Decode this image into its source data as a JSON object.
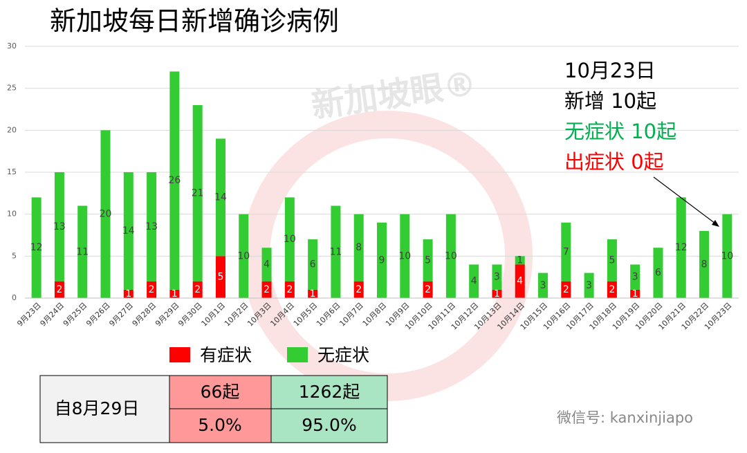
{
  "chart_data": {
    "type": "bar",
    "stacked": true,
    "title": "新加坡每日新增确诊病例",
    "categories": [
      "9月23日",
      "9月24日",
      "9月25日",
      "9月26日",
      "9月27日",
      "9月28日",
      "9月29日",
      "9月30日",
      "10月1日",
      "10月2日",
      "10月3日",
      "10月4日",
      "10月5日",
      "10月6日",
      "10月7日",
      "10月8日",
      "10月9日",
      "10月10日",
      "10月11日",
      "10月12日",
      "10月13日",
      "10月14日",
      "10月15日",
      "10月16日",
      "10月17日",
      "10月18日",
      "10月19日",
      "10月20日",
      "10月21日",
      "10月22日",
      "10月23日"
    ],
    "series": [
      {
        "name": "有症状",
        "color": "#ff0000",
        "label_color": "#ffffff",
        "values": [
          0,
          2,
          0,
          0,
          1,
          2,
          1,
          2,
          5,
          0,
          2,
          2,
          1,
          0,
          2,
          0,
          0,
          2,
          0,
          0,
          1,
          4,
          0,
          2,
          0,
          2,
          1,
          0,
          0,
          0,
          0
        ]
      },
      {
        "name": "无症状",
        "color": "#33cc33",
        "label_color": "#404040",
        "values": [
          12,
          13,
          11,
          20,
          14,
          13,
          26,
          21,
          14,
          10,
          4,
          10,
          6,
          11,
          8,
          9,
          10,
          5,
          10,
          4,
          3,
          1,
          3,
          7,
          3,
          5,
          3,
          6,
          12,
          8,
          10
        ]
      }
    ],
    "ylim": [
      0,
      30
    ],
    "yticks": [
      0,
      5,
      10,
      15,
      20,
      25,
      30
    ],
    "grid": true
  },
  "annotation": [
    {
      "text": "10月23日",
      "color": "#000000"
    },
    {
      "text": "新增 10起",
      "color": "#000000"
    },
    {
      "text": "无症状 10起",
      "color": "#00b050"
    },
    {
      "text": "出症状 0起",
      "color": "#ff0000"
    }
  ],
  "table": {
    "label": "自8月29日",
    "rows": [
      [
        "66起",
        "1262起"
      ],
      [
        "5.0%",
        "95.0%"
      ]
    ]
  },
  "watermark": {
    "logo": "新加坡眼®",
    "wechat": "微信号: kanxinjiapo"
  }
}
